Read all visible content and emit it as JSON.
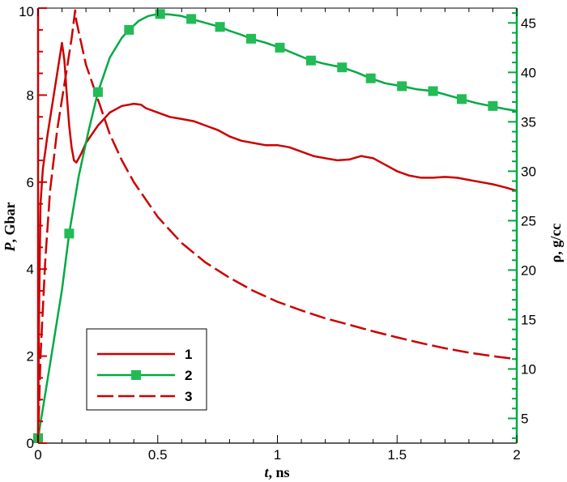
{
  "chart_data": {
    "type": "line",
    "xlabel": {
      "italic": "t",
      "rest": ", ns"
    },
    "ylabel_left": {
      "italic": "P",
      "rest": ", Gbar"
    },
    "ylabel_right": "ρ, g/cc",
    "xlim": [
      0,
      2
    ],
    "ylim_left": [
      0,
      10
    ],
    "ylim_right": [
      2.5,
      46.5
    ],
    "x_ticks": [
      0,
      0.5,
      1,
      1.5,
      2
    ],
    "x_tick_labels": [
      "0",
      "0.5",
      "1",
      "1.5",
      "2"
    ],
    "y_left_ticks": [
      0,
      2,
      4,
      6,
      8,
      10
    ],
    "y_left_tick_labels": [
      "0",
      "2",
      "4",
      "6",
      "8",
      "10"
    ],
    "y_right_ticks": [
      5,
      10,
      15,
      20,
      25,
      30,
      35,
      40,
      45
    ],
    "y_right_tick_labels": [
      "5",
      "10",
      "15",
      "20",
      "25",
      "30",
      "35",
      "40",
      "45"
    ],
    "grid": false,
    "legend_position": "bottom-left",
    "colors": {
      "red": "#cc0000",
      "green": "#00aa44",
      "marker": "#22bb55"
    },
    "series": [
      {
        "name": "1",
        "axis": "left",
        "style": "solid",
        "color": "#cc0000",
        "x": [
          0,
          0.004,
          0.01,
          0.02,
          0.04,
          0.06,
          0.08,
          0.1,
          0.11,
          0.12,
          0.13,
          0.14,
          0.15,
          0.16,
          0.18,
          0.2,
          0.25,
          0.3,
          0.35,
          0.4,
          0.43,
          0.45,
          0.5,
          0.55,
          0.6,
          0.65,
          0.7,
          0.75,
          0.8,
          0.85,
          0.9,
          0.95,
          1.0,
          1.05,
          1.1,
          1.15,
          1.2,
          1.25,
          1.3,
          1.35,
          1.4,
          1.45,
          1.5,
          1.55,
          1.6,
          1.65,
          1.7,
          1.75,
          1.8,
          1.85,
          1.9,
          1.95,
          2.0
        ],
        "y": [
          0,
          3.0,
          5.5,
          6.3,
          7.1,
          7.8,
          8.5,
          9.2,
          8.8,
          8.0,
          7.3,
          6.8,
          6.5,
          6.45,
          6.65,
          6.9,
          7.3,
          7.6,
          7.75,
          7.8,
          7.78,
          7.7,
          7.6,
          7.5,
          7.45,
          7.4,
          7.3,
          7.2,
          7.05,
          6.95,
          6.9,
          6.85,
          6.85,
          6.8,
          6.7,
          6.6,
          6.55,
          6.5,
          6.52,
          6.6,
          6.55,
          6.4,
          6.25,
          6.15,
          6.1,
          6.1,
          6.12,
          6.1,
          6.05,
          6.0,
          5.95,
          5.88,
          5.8
        ]
      },
      {
        "name": "2",
        "axis": "right",
        "style": "solid-with-square-markers",
        "color": "#00aa44",
        "x": [
          0,
          0.05,
          0.1,
          0.13,
          0.17,
          0.21,
          0.25,
          0.3,
          0.35,
          0.38,
          0.42,
          0.46,
          0.5,
          0.55,
          0.6,
          0.64,
          0.7,
          0.76,
          0.8,
          0.85,
          0.89,
          0.95,
          1.01,
          1.07,
          1.13,
          1.19,
          1.25,
          1.27,
          1.33,
          1.39,
          1.45,
          1.52,
          1.58,
          1.65,
          1.71,
          1.77,
          1.83,
          1.89,
          1.95,
          2.0
        ],
        "y": [
          3.0,
          10.5,
          18.0,
          23.7,
          29.5,
          34.0,
          38.0,
          41.5,
          43.5,
          44.3,
          45.2,
          45.7,
          45.9,
          45.85,
          45.7,
          45.4,
          45.0,
          44.6,
          44.2,
          43.8,
          43.4,
          43.0,
          42.5,
          41.9,
          41.3,
          40.9,
          40.6,
          40.5,
          40.0,
          39.4,
          38.9,
          38.6,
          38.3,
          38.1,
          37.7,
          37.3,
          36.9,
          36.6,
          36.3,
          36.1
        ],
        "markers_x": [
          0,
          0.13,
          0.25,
          0.38,
          0.51,
          0.64,
          0.76,
          0.89,
          1.01,
          1.14,
          1.27,
          1.39,
          1.52,
          1.65,
          1.77,
          1.9
        ],
        "markers_y": [
          3.0,
          23.7,
          38.0,
          44.3,
          45.9,
          45.4,
          44.6,
          43.4,
          42.5,
          41.2,
          40.5,
          39.4,
          38.6,
          38.1,
          37.3,
          36.6
        ]
      },
      {
        "name": "3",
        "axis": "left",
        "style": "dashed",
        "color": "#cc0000",
        "x": [
          0,
          0.01,
          0.03,
          0.05,
          0.08,
          0.1,
          0.12,
          0.14,
          0.155,
          0.16,
          0.18,
          0.2,
          0.25,
          0.3,
          0.35,
          0.4,
          0.45,
          0.5,
          0.55,
          0.6,
          0.7,
          0.8,
          0.9,
          1.0,
          1.1,
          1.2,
          1.3,
          1.4,
          1.5,
          1.6,
          1.7,
          1.8,
          1.9,
          2.0
        ],
        "y": [
          0,
          2.0,
          4.2,
          5.8,
          7.2,
          7.9,
          8.6,
          9.3,
          9.95,
          9.7,
          9.2,
          8.7,
          7.9,
          7.1,
          6.5,
          6.0,
          5.6,
          5.2,
          4.9,
          4.6,
          4.15,
          3.8,
          3.5,
          3.25,
          3.05,
          2.87,
          2.72,
          2.57,
          2.43,
          2.3,
          2.18,
          2.08,
          2.0,
          1.93
        ]
      }
    ]
  }
}
